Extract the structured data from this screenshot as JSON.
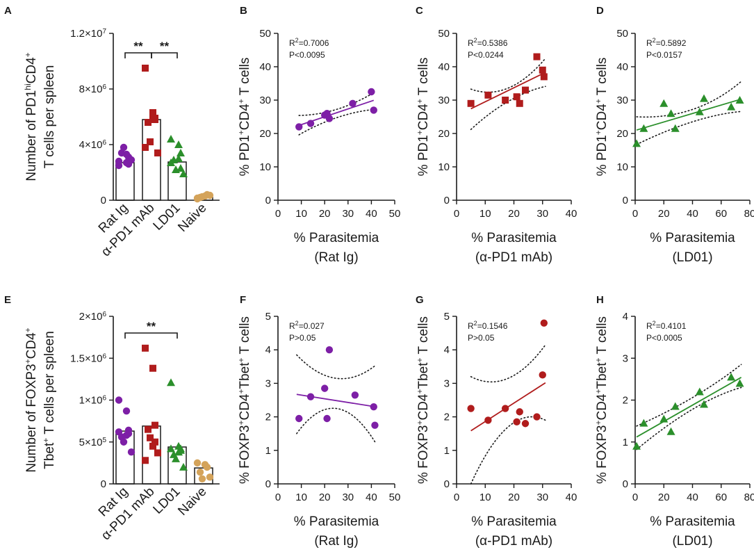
{
  "colors": {
    "purple": "#7d1fa6",
    "red": "#b01c1c",
    "green": "#2b8f2b",
    "tan": "#d4a35a",
    "axis": "#1a1a1a"
  },
  "chart_data": [
    {
      "panel": "A",
      "type": "bar",
      "ylabel_line1": "Number of PD1",
      "ylabel_sup1": "hi",
      "ylabel_mid": "CD4",
      "ylabel_sup2": "+",
      "ylabel_line2": "T cells per spleen",
      "ylim": [
        0,
        12000000
      ],
      "yticks": [
        {
          "v": 0,
          "base": "0",
          "exp": ""
        },
        {
          "v": 4000000,
          "base": "4×10",
          "exp": "6"
        },
        {
          "v": 8000000,
          "base": "8×10",
          "exp": "6"
        },
        {
          "v": 12000000,
          "base": "1.2×10",
          "exp": "7"
        }
      ],
      "categories": [
        "Rat Ig",
        "α-PD1 mAb",
        "LD01",
        "Naive"
      ],
      "bar_means": [
        2700000,
        5800000,
        2750000,
        200000
      ],
      "points": [
        [
          2500000,
          2700000,
          3100000,
          3400000,
          3800000,
          2900000,
          2800000,
          3300000,
          2600000
        ],
        [
          9500000,
          6300000,
          5800000,
          5600000,
          4200000,
          3400000,
          3800000,
          6000000,
          5900000
        ],
        [
          4400000,
          4000000,
          3400000,
          2900000,
          2200000,
          1900000,
          2700000,
          3000000,
          2300000
        ],
        [
          150000,
          300000,
          400000,
          200000,
          250000,
          350000,
          100000
        ]
      ],
      "significance": [
        {
          "from": 0,
          "to": 1,
          "label": "**"
        },
        {
          "from": 1,
          "to": 2,
          "label": "**"
        }
      ]
    },
    {
      "panel": "B",
      "type": "scatter",
      "ylabel_pre": "% PD1",
      "ylabel_sup1": "+",
      "ylabel_mid": "CD4",
      "ylabel_sup2": "+",
      "ylabel_post": "  T cells",
      "xlabel": "% Parasitemia",
      "xsub": "(Rat Ig)",
      "xlim": [
        0,
        50
      ],
      "xticks": [
        0,
        10,
        20,
        30,
        40,
        50
      ],
      "ylim": [
        0,
        50
      ],
      "yticks": [
        0,
        10,
        20,
        30,
        40,
        50
      ],
      "stat_r2": "=0.7006",
      "stat_p": "P<0.0095",
      "x": [
        9,
        14,
        20,
        21,
        22,
        32,
        40,
        41
      ],
      "y": [
        22,
        23,
        25.5,
        26,
        24.5,
        29,
        32.5,
        27
      ],
      "fit": {
        "slope": 0.235,
        "intercept": 20.3
      },
      "ci_upper": [
        [
          9,
          25.4
        ],
        [
          25,
          27.2
        ],
        [
          41,
          32.2
        ]
      ],
      "ci_lower": [
        [
          9,
          19.6
        ],
        [
          25,
          24.7
        ],
        [
          41,
          27.2
        ]
      ]
    },
    {
      "panel": "C",
      "type": "scatter",
      "ylabel_pre": "% PD1",
      "ylabel_sup1": "+",
      "ylabel_mid": "CD4",
      "ylabel_sup2": "+",
      "ylabel_post": "  T cells",
      "xlabel": "% Parasitemia",
      "xsub": "(α-PD1 mAb)",
      "xlim": [
        0,
        40
      ],
      "xticks": [
        0,
        10,
        20,
        30,
        40
      ],
      "ylim": [
        0,
        50
      ],
      "yticks": [
        0,
        10,
        20,
        30,
        40,
        50
      ],
      "stat_r2": "=0.5386",
      "stat_p": "P<0.0244",
      "x": [
        5,
        11,
        17,
        21,
        22,
        24,
        28,
        30,
        30.5
      ],
      "y": [
        29,
        31.5,
        30,
        31,
        29,
        33,
        43,
        39,
        37
      ],
      "fit": {
        "slope": 0.42,
        "intercept": 25.3
      },
      "ci_upper": [
        [
          5,
          33.3
        ],
        [
          18,
          33.6
        ],
        [
          31,
          42.5
        ]
      ],
      "ci_lower": [
        [
          5,
          21.2
        ],
        [
          18,
          29.6
        ],
        [
          31,
          34.1
        ]
      ]
    },
    {
      "panel": "D",
      "type": "scatter",
      "ylabel_pre": "% PD1",
      "ylabel_sup1": "+",
      "ylabel_mid": "CD4",
      "ylabel_sup2": "+",
      "ylabel_post": "  T cells",
      "xlabel": "% Parasitemia",
      "xsub": "(LD01)",
      "xlim": [
        0,
        80
      ],
      "xticks": [
        0,
        20,
        40,
        60,
        80
      ],
      "ylim": [
        0,
        50
      ],
      "yticks": [
        0,
        10,
        20,
        30,
        40,
        50
      ],
      "stat_r2": "=0.5892",
      "stat_p": "P<0.0157",
      "x": [
        1,
        6,
        20,
        25,
        28,
        45,
        48,
        67,
        73
      ],
      "y": [
        17,
        21.5,
        29,
        26,
        21.5,
        26.5,
        30.5,
        28,
        30
      ],
      "fit": {
        "slope": 0.127,
        "intercept": 20.9
      },
      "ci_upper": [
        [
          1,
          25
        ],
        [
          40,
          27.2
        ],
        [
          74,
          35.6
        ]
      ],
      "ci_lower": [
        [
          1,
          16.7
        ],
        [
          40,
          23.5
        ],
        [
          74,
          26.6
        ]
      ]
    },
    {
      "panel": "E",
      "type": "bar",
      "ylabel_line1": "Number of FOXP3",
      "ylabel_sup1": "+",
      "ylabel_mid": "CD4",
      "ylabel_sup2": "+",
      "ylabel_line2_pre": "Tbet",
      "ylabel_line2_sup": "+",
      "ylabel_line2": " T cells per spleen",
      "ylim": [
        0,
        2000000
      ],
      "yticks": [
        {
          "v": 0,
          "base": "0",
          "exp": ""
        },
        {
          "v": 500000,
          "base": "5×10",
          "exp": "5"
        },
        {
          "v": 1000000,
          "base": "1×10",
          "exp": "6"
        },
        {
          "v": 1500000,
          "base": "1.5×10",
          "exp": "6"
        },
        {
          "v": 2000000,
          "base": "2×10",
          "exp": "6"
        }
      ],
      "categories": [
        "Rat Ig",
        "α-PD1 mAb",
        "LD01",
        "Naive"
      ],
      "bar_means": [
        630000,
        690000,
        440000,
        190000
      ],
      "points": [
        [
          1000000,
          870000,
          640000,
          560000,
          500000,
          380000,
          620000,
          580000,
          600000
        ],
        [
          1620000,
          1380000,
          700000,
          650000,
          550000,
          370000,
          280000,
          450000,
          500000
        ],
        [
          1210000,
          450000,
          420000,
          350000,
          300000,
          200000,
          420000,
          380000,
          400000
        ],
        [
          250000,
          230000,
          200000,
          140000,
          60000,
          80000
        ]
      ],
      "significance": [
        {
          "from": 0,
          "to": 2,
          "label": "**"
        }
      ]
    },
    {
      "panel": "F",
      "type": "scatter",
      "ylabel_pre": "% FOXP3",
      "ylabel_sup1": "+",
      "ylabel_mid": "CD4",
      "ylabel_sup2": "+",
      "ylabel_mid2": "Tbet",
      "ylabel_sup3": "+",
      "ylabel_post": " T cells",
      "xlabel": "% Parasitemia",
      "xsub": "(Rat Ig)",
      "xlim": [
        0,
        50
      ],
      "xticks": [
        0,
        10,
        20,
        30,
        40,
        50
      ],
      "ylim": [
        0,
        5
      ],
      "yticks": [
        0,
        1,
        2,
        3,
        4,
        5
      ],
      "stat_r2": "=0.027",
      "stat_p": "P>0.05",
      "x": [
        9,
        14,
        20,
        21,
        22,
        33,
        41,
        41.5
      ],
      "y": [
        1.95,
        2.6,
        2.85,
        1.95,
        4.0,
        2.65,
        2.3,
        1.75
      ],
      "fit": {
        "slope": -0.011,
        "intercept": 2.76
      },
      "ci_upper": [
        [
          8,
          3.85
        ],
        [
          25,
          3.15
        ],
        [
          42,
          3.55
        ]
      ],
      "ci_lower": [
        [
          8,
          1.5
        ],
        [
          25,
          2.25
        ],
        [
          42,
          1.2
        ]
      ]
    },
    {
      "panel": "G",
      "type": "scatter",
      "ylabel_pre": "% FOXP3",
      "ylabel_sup1": "+",
      "ylabel_mid": "CD4",
      "ylabel_sup2": "+",
      "ylabel_mid2": "Tbet",
      "ylabel_sup3": "+",
      "ylabel_post": " T cells",
      "xlabel": "% Parasitemia",
      "xsub": "(α-PD1 mAb)",
      "xlim": [
        0,
        40
      ],
      "xticks": [
        0,
        10,
        20,
        30,
        40
      ],
      "ylim": [
        0,
        5
      ],
      "yticks": [
        0,
        1,
        2,
        3,
        4,
        5
      ],
      "stat_r2": "=0.1546",
      "stat_p": "P>0.05",
      "x": [
        5,
        11,
        17,
        21,
        22,
        24,
        28,
        30,
        30.5
      ],
      "y": [
        2.25,
        1.9,
        2.25,
        1.85,
        2.15,
        1.8,
        2.0,
        3.25,
        4.8
      ],
      "fit": {
        "slope": 0.055,
        "intercept": 1.31
      },
      "ci_upper": [
        [
          5,
          3.2
        ],
        [
          18,
          3.15
        ],
        [
          31,
          4.15
        ]
      ],
      "ci_lower": [
        [
          5,
          -0.2
        ],
        [
          18,
          1.65
        ],
        [
          31,
          1.9
        ]
      ]
    },
    {
      "panel": "H",
      "type": "scatter",
      "ylabel_pre": "% FOXP3",
      "ylabel_sup1": "+",
      "ylabel_mid": "CD4",
      "ylabel_sup2": "+",
      "ylabel_mid2": "Tbet",
      "ylabel_sup3": "+",
      "ylabel_post": " T cells",
      "xlabel": "% Parasitemia",
      "xsub": "(LD01)",
      "xlim": [
        0,
        80
      ],
      "xticks": [
        0,
        20,
        40,
        60,
        80
      ],
      "ylim": [
        0,
        4
      ],
      "yticks": [
        0,
        1,
        2,
        3,
        4
      ],
      "stat_r2": "=0.4101",
      "stat_p": "P<0.0005",
      "x": [
        1,
        6,
        20,
        25,
        28,
        45,
        48,
        67,
        73
      ],
      "y": [
        0.9,
        1.45,
        1.55,
        1.25,
        1.85,
        2.2,
        1.9,
        2.55,
        2.4
      ],
      "fit": {
        "slope": 0.0195,
        "intercept": 1.1
      },
      "ci_upper": [
        [
          1,
          1.38
        ],
        [
          40,
          2.06
        ],
        [
          74,
          2.85
        ]
      ],
      "ci_lower": [
        [
          1,
          0.82
        ],
        [
          40,
          1.78
        ],
        [
          74,
          2.3
        ]
      ]
    }
  ]
}
